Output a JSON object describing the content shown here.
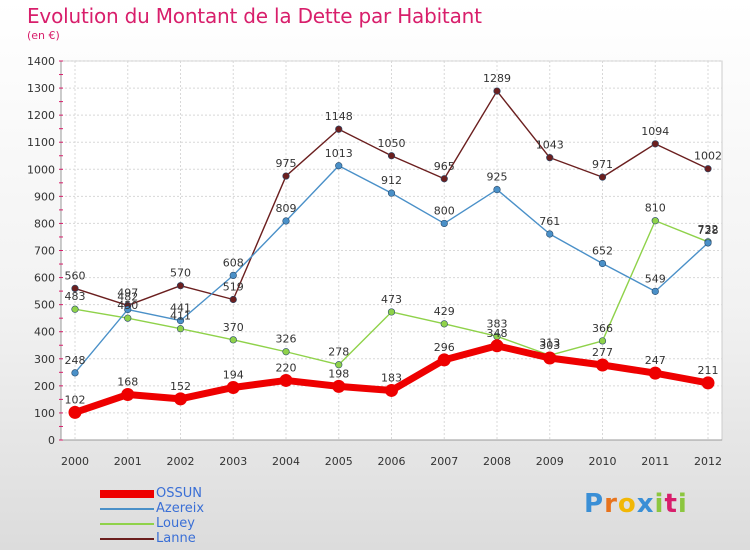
{
  "chart_data": {
    "type": "line",
    "title": "Evolution du Montant de la Dette par Habitant",
    "subtitle": "(en €)",
    "xlabel": "",
    "ylabel": "",
    "ylim": [
      0,
      1400
    ],
    "yticks": [
      0,
      100,
      200,
      300,
      400,
      500,
      600,
      700,
      800,
      900,
      1000,
      1100,
      1200,
      1300,
      1400
    ],
    "x": [
      "2000",
      "2001",
      "2002",
      "2003",
      "2004",
      "2005",
      "2006",
      "2007",
      "2008",
      "2009",
      "2010",
      "2011",
      "2012"
    ],
    "grid": true,
    "legend_position": "bottom-left",
    "series": [
      {
        "name": "OSSUN",
        "color": "#ee0000",
        "values": [
          102,
          168,
          152,
          194,
          220,
          198,
          183,
          296,
          348,
          303,
          277,
          247,
          211
        ]
      },
      {
        "name": "Azereix",
        "color": "#4a90c8",
        "values": [
          248,
          482,
          441,
          608,
          809,
          1013,
          912,
          800,
          925,
          761,
          652,
          549,
          728
        ]
      },
      {
        "name": "Louey",
        "color": "#8fd24a",
        "values": [
          483,
          450,
          411,
          370,
          326,
          278,
          473,
          429,
          383,
          313,
          366,
          810,
          732
        ]
      },
      {
        "name": "Lanne",
        "color": "#6b1f1f",
        "values": [
          560,
          497,
          570,
          519,
          975,
          1148,
          1050,
          965,
          1289,
          1043,
          971,
          1094,
          1002
        ]
      }
    ]
  },
  "logo": {
    "p": "P",
    "r": "r",
    "o": "o",
    "x": "x",
    "i": "i",
    "t": "t",
    "i2": "i"
  }
}
